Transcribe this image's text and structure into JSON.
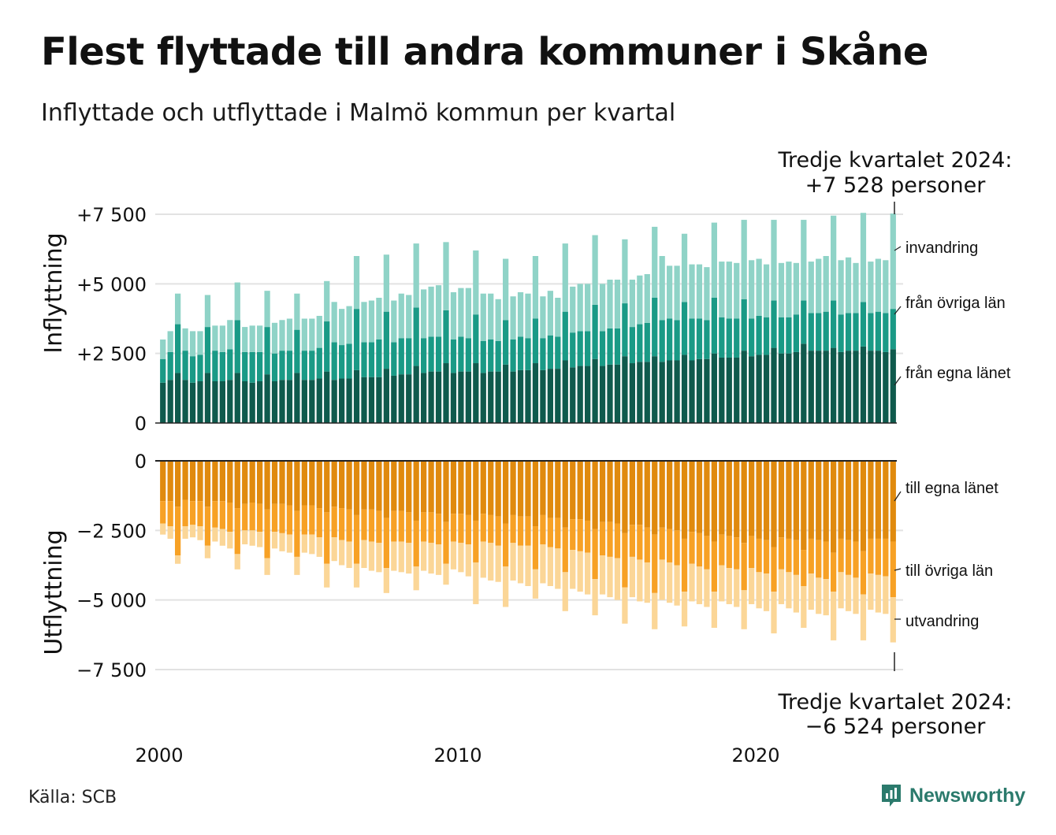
{
  "header": {
    "title": "Flest flyttade till andra kommuner i Skåne",
    "subtitle": "Inflyttade och utflyttade i Malmö kommun per kvartal"
  },
  "footer": {
    "source": "Källa: SCB",
    "brand": "Newsworthy"
  },
  "colors": {
    "in_own": "#0f5a4d",
    "in_other": "#1a9a86",
    "in_immig": "#8fd3c7",
    "out_own": "#e08a0e",
    "out_other": "#f7a125",
    "out_emig": "#fbd697",
    "grid": "#e2e2e2",
    "brand": "#2b7a6c"
  },
  "chart_data": {
    "type": "bar",
    "stacked": true,
    "x_ticks": [
      "2000",
      "2010",
      "2020"
    ],
    "panels": [
      {
        "id": "inflyttning",
        "ylabel": "Inflyttning",
        "ylim": [
          0,
          7500
        ],
        "y_ticks": [
          0,
          2500,
          5000,
          7500
        ],
        "y_tick_labels": [
          "0",
          "+2 500",
          "+5 000",
          "+7 500"
        ],
        "series_labels": [
          "från egna länet",
          "från övriga län",
          "invandring"
        ],
        "series_displayed": [
          "från egna länet",
          "från övriga län",
          "invandring"
        ],
        "annotation": [
          "Tredje kvartalet 2024:",
          "+7 528 personer"
        ]
      },
      {
        "id": "utflyttning",
        "ylabel": "Utflyttning",
        "ylim": [
          -7500,
          0
        ],
        "y_ticks": [
          0,
          -2500,
          -5000,
          -7500
        ],
        "y_tick_labels": [
          "0",
          "−2 500",
          "−5 000",
          "−7 500"
        ],
        "series_labels": [
          "till egna länet",
          "till övriga län",
          "utvandring"
        ],
        "annotation": [
          "Tredje kvartalet 2024:",
          "−6 524 personer"
        ]
      }
    ],
    "in_totals": [
      3000,
      3300,
      4650,
      3400,
      3300,
      3300,
      4600,
      3500,
      3500,
      3700,
      5050,
      3450,
      3500,
      3500,
      4750,
      3600,
      3700,
      3750,
      4650,
      3750,
      3750,
      3850,
      5100,
      4350,
      4100,
      4200,
      6000,
      4350,
      4400,
      4500,
      6050,
      4400,
      4650,
      4600,
      6450,
      4800,
      4900,
      4950,
      6500,
      4700,
      4850,
      4850,
      6200,
      4650,
      4650,
      4450,
      5900,
      4550,
      4700,
      4650,
      6000,
      4550,
      4750,
      4500,
      6450,
      4900,
      5000,
      5000,
      6750,
      5000,
      5150,
      5150,
      6600,
      5150,
      5300,
      5350,
      7050,
      6000,
      5650,
      5650,
      6800,
      5700,
      5700,
      5600,
      7200,
      5800,
      5800,
      5750,
      7300,
      5850,
      5900,
      5700,
      7300,
      5750,
      5800,
      5750,
      7300,
      5800,
      5900,
      6000,
      7450,
      5850,
      5950,
      5750,
      7550,
      5800,
      5900,
      5850,
      7528
    ],
    "in_own": [
      1450,
      1550,
      1800,
      1550,
      1450,
      1500,
      1800,
      1500,
      1500,
      1550,
      1800,
      1500,
      1450,
      1500,
      1750,
      1500,
      1550,
      1550,
      1800,
      1550,
      1550,
      1600,
      1850,
      1550,
      1600,
      1600,
      1900,
      1650,
      1650,
      1650,
      1950,
      1700,
      1750,
      1750,
      2050,
      1800,
      1850,
      1850,
      2150,
      1800,
      1850,
      1850,
      2150,
      1800,
      1850,
      1850,
      2100,
      1850,
      1900,
      1900,
      2150,
      1900,
      1950,
      1950,
      2250,
      2000,
      2050,
      2050,
      2300,
      2050,
      2100,
      2100,
      2400,
      2150,
      2200,
      2200,
      2400,
      2200,
      2250,
      2250,
      2450,
      2250,
      2300,
      2300,
      2500,
      2350,
      2350,
      2350,
      2600,
      2400,
      2450,
      2450,
      2700,
      2500,
      2500,
      2550,
      2850,
      2600,
      2600,
      2600,
      2700,
      2550,
      2600,
      2600,
      2750,
      2600,
      2600,
      2550,
      2650
    ],
    "in_other": [
      850,
      1000,
      1750,
      1050,
      950,
      950,
      1650,
      1100,
      1050,
      1100,
      1900,
      1050,
      1100,
      1050,
      1700,
      1000,
      1050,
      1050,
      1550,
      1050,
      1050,
      1100,
      1800,
      1350,
      1200,
      1250,
      2200,
      1250,
      1250,
      1350,
      2050,
      1200,
      1300,
      1300,
      2100,
      1250,
      1250,
      1250,
      1900,
      1200,
      1250,
      1200,
      1750,
      1150,
      1150,
      1100,
      1600,
      1150,
      1200,
      1150,
      1600,
      1150,
      1200,
      1150,
      1750,
      1250,
      1250,
      1250,
      1950,
      1250,
      1300,
      1300,
      1900,
      1300,
      1350,
      1400,
      2100,
      1500,
      1500,
      1450,
      1900,
      1500,
      1450,
      1400,
      2000,
      1450,
      1400,
      1400,
      1850,
      1350,
      1400,
      1350,
      1700,
      1300,
      1300,
      1350,
      1550,
      1350,
      1350,
      1400,
      1700,
      1350,
      1350,
      1350,
      1600,
      1350,
      1400,
      1400,
      1450
    ],
    "out_totals": [
      -2650,
      -2800,
      -3700,
      -2800,
      -2750,
      -2850,
      -3500,
      -2900,
      -3050,
      -3150,
      -3900,
      -3000,
      -3050,
      -3100,
      -4100,
      -3150,
      -3250,
      -3300,
      -4100,
      -3300,
      -3350,
      -3450,
      -4550,
      -3600,
      -3750,
      -3850,
      -4550,
      -3850,
      -3950,
      -4000,
      -4750,
      -3950,
      -4000,
      -4050,
      -4650,
      -3950,
      -4050,
      -4100,
      -4450,
      -3900,
      -4000,
      -4150,
      -5150,
      -4200,
      -4300,
      -4350,
      -5250,
      -4300,
      -4400,
      -4500,
      -4950,
      -4400,
      -4500,
      -4600,
      -5400,
      -4600,
      -4700,
      -4800,
      -5550,
      -4800,
      -4900,
      -5000,
      -5850,
      -4900,
      -5050,
      -5100,
      -6050,
      -5000,
      -5100,
      -5200,
      -5950,
      -5050,
      -5150,
      -5250,
      -6000,
      -5050,
      -5150,
      -5250,
      -6050,
      -5150,
      -5300,
      -5400,
      -6200,
      -5150,
      -5300,
      -5450,
      -6000,
      -5350,
      -5500,
      -5550,
      -6450,
      -5300,
      -5400,
      -5500,
      -6450,
      -5350,
      -5450,
      -5500,
      -6524
    ],
    "out_own": [
      -1450,
      -1450,
      -1650,
      -1400,
      -1450,
      -1450,
      -1650,
      -1450,
      -1450,
      -1500,
      -1700,
      -1550,
      -1500,
      -1550,
      -1750,
      -1550,
      -1550,
      -1600,
      -1800,
      -1600,
      -1600,
      -1700,
      -1850,
      -1650,
      -1700,
      -1750,
      -1950,
      -1750,
      -1750,
      -1800,
      -2050,
      -1800,
      -1800,
      -1850,
      -2150,
      -1850,
      -1850,
      -1900,
      -2200,
      -1900,
      -1900,
      -1950,
      -2150,
      -1900,
      -1950,
      -2000,
      -2250,
      -1950,
      -2000,
      -2000,
      -2350,
      -1950,
      -2050,
      -2050,
      -2400,
      -2100,
      -2100,
      -2150,
      -2450,
      -2200,
      -2200,
      -2250,
      -2600,
      -2300,
      -2300,
      -2400,
      -2650,
      -2400,
      -2450,
      -2500,
      -2800,
      -2550,
      -2600,
      -2700,
      -2900,
      -2650,
      -2700,
      -2750,
      -2950,
      -2700,
      -2800,
      -2850,
      -3100,
      -2750,
      -2800,
      -2850,
      -3200,
      -2800,
      -2850,
      -2900,
      -3300,
      -2800,
      -2850,
      -2900,
      -3250,
      -2800,
      -2800,
      -2800,
      -2900
    ],
    "out_other": [
      -800,
      -900,
      -1750,
      -950,
      -850,
      -900,
      -1400,
      -950,
      -1000,
      -1050,
      -1650,
      -950,
      -1000,
      -1000,
      -1750,
      -1000,
      -1050,
      -1050,
      -1650,
      -1050,
      -1050,
      -1050,
      -1850,
      -1100,
      -1150,
      -1150,
      -1750,
      -1100,
      -1150,
      -1150,
      -1800,
      -1100,
      -1100,
      -1100,
      -1650,
      -1050,
      -1100,
      -1100,
      -1500,
      -1000,
      -1050,
      -1050,
      -1500,
      -1000,
      -1000,
      -1050,
      -1550,
      -1000,
      -1050,
      -1050,
      -1550,
      -1050,
      -1050,
      -1100,
      -1600,
      -1100,
      -1150,
      -1150,
      -1800,
      -1200,
      -1250,
      -1250,
      -1950,
      -1150,
      -1250,
      -1250,
      -2100,
      -1150,
      -1200,
      -1250,
      -1900,
      -1150,
      -1200,
      -1200,
      -1800,
      -1100,
      -1150,
      -1150,
      -1700,
      -1150,
      -1200,
      -1200,
      -1600,
      -1150,
      -1200,
      -1250,
      -1300,
      -1250,
      -1350,
      -1350,
      -1400,
      -1200,
      -1250,
      -1300,
      -1550,
      -1250,
      -1300,
      -1350,
      -2000
    ]
  }
}
